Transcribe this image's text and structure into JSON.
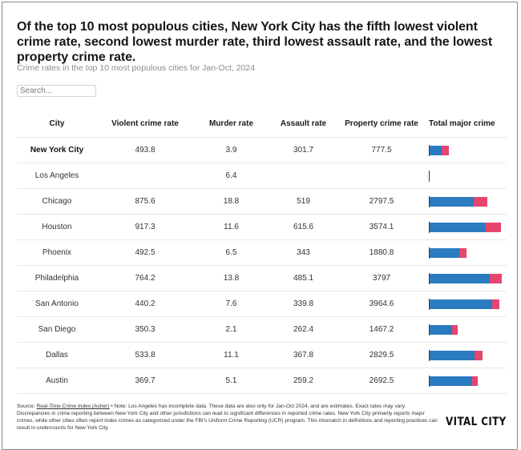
{
  "title": "Of the top 10 most populous cities, New York City has the fifth lowest violent crime rate, second lowest murder rate, third lowest assault rate, and the lowest property crime rate.",
  "subtitle": "Crime rates in the top 10 most populous cities for Jan-Oct, 2024",
  "search": {
    "placeholder": "Search..."
  },
  "colors": {
    "property": "#2b7bc0",
    "violent": "#e6456e",
    "axis": "#3a3a3a"
  },
  "chart_data": {
    "type": "table",
    "title": "Of the top 10 most populous cities, New York City has the fifth lowest violent crime rate, second lowest murder rate, third lowest assault rate, and the lowest property crime rate.",
    "subtitle": "Crime rates in the top 10 most populous cities for Jan-Oct, 2024",
    "columns": [
      "City",
      "Violent crime rate",
      "Murder rate",
      "Assault rate",
      "Property crime rate",
      "Total major crime"
    ],
    "bar_column": {
      "label": "Total major crime",
      "type": "stacked-bar",
      "series": [
        {
          "name": "Property crime rate",
          "color": "#2b7bc0"
        },
        {
          "name": "Violent crime rate",
          "color": "#e6456e"
        }
      ],
      "xlim": [
        0,
        5000
      ]
    },
    "rows": [
      {
        "city": "New York City",
        "violent": "493.8",
        "murder": "3.9",
        "assault": "301.7",
        "property": "777.5",
        "highlight": true
      },
      {
        "city": "Los Angeles",
        "violent": "",
        "murder": "6.4",
        "assault": "",
        "property": ""
      },
      {
        "city": "Chicago",
        "violent": "875.6",
        "murder": "18.8",
        "assault": "519",
        "property": "2797.5"
      },
      {
        "city": "Houston",
        "violent": "917.3",
        "murder": "11.6",
        "assault": "615.6",
        "property": "3574.1"
      },
      {
        "city": "Phoenix",
        "violent": "492.5",
        "murder": "6.5",
        "assault": "343",
        "property": "1880.8"
      },
      {
        "city": "Philadelphia",
        "violent": "764.2",
        "murder": "13.8",
        "assault": "485.1",
        "property": "3797"
      },
      {
        "city": "San Antonio",
        "violent": "440.2",
        "murder": "7.6",
        "assault": "339.8",
        "property": "3964.6"
      },
      {
        "city": "San Diego",
        "violent": "350.3",
        "murder": "2.1",
        "assault": "262.4",
        "property": "1467.2"
      },
      {
        "city": "Dallas",
        "violent": "533.8",
        "murder": "11.1",
        "assault": "367.8",
        "property": "2829.5"
      },
      {
        "city": "Austin",
        "violent": "369.7",
        "murder": "5.1",
        "assault": "259.2",
        "property": "2692.5"
      }
    ]
  },
  "footer": {
    "source_prefix": "Source: ",
    "source_link": "Real-Time Crime Index (Asher)",
    "note": " • Note: Los Angeles has incomplete data. These data are also only for Jan-Oct 2024, and are estimates. Exact rates may vary.",
    "discrepancy": "Discrepancies in crime reporting between New York City and other jurisdictions can lead to significant differences in reported crime rates. New York City primarily reports major crimes, while other cities often report index crimes as categorized under the FBI's Uniform Crime Reporting (UCR) program. This mismatch in definitions and reporting practices can result in undercounts for New York City."
  },
  "brand": "VITAL CITY"
}
